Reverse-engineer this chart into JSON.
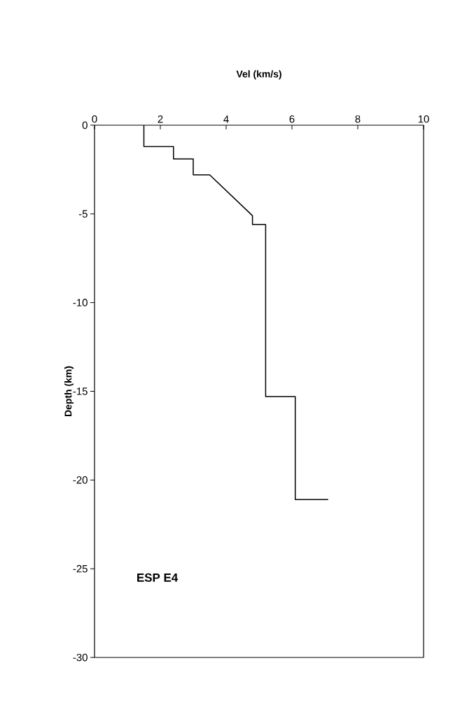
{
  "chart_data": {
    "type": "line",
    "xlabel": "Vel (km/s)",
    "ylabel": "Depth (km)",
    "annotations": [
      "ESP E4"
    ],
    "x": [
      1.5,
      1.5,
      2.4,
      2.4,
      3.0,
      3.0,
      3.5,
      4.8,
      4.8,
      5.2,
      5.2,
      6.1,
      6.1,
      7.1
    ],
    "values": [
      0,
      -1.2,
      -1.2,
      -1.9,
      -1.9,
      -2.8,
      -2.8,
      -5.1,
      -5.6,
      -5.6,
      -15.3,
      -15.3,
      -21.1,
      -21.1
    ],
    "color": "#000000",
    "xlim": [
      0,
      10
    ],
    "ylim": [
      -30,
      0
    ],
    "xticks": [
      0,
      2,
      4,
      6,
      8,
      10
    ],
    "yticks": [
      -30,
      -25,
      -20,
      -15,
      -10,
      -5,
      0
    ],
    "grid": false,
    "marker": "none",
    "line_style": "solid"
  }
}
